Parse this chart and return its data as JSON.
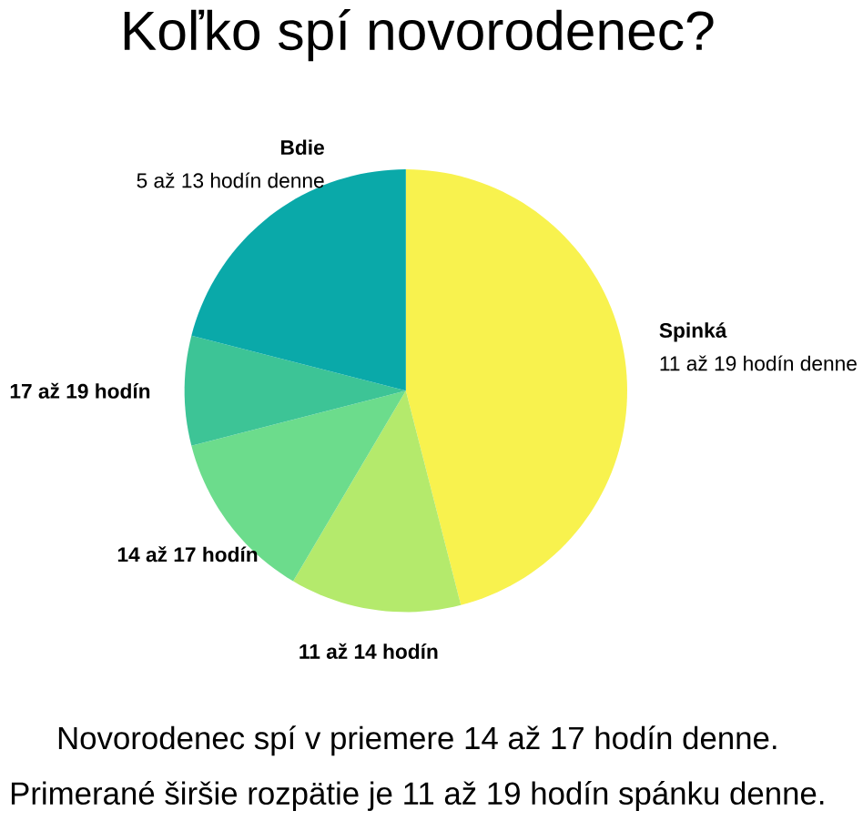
{
  "chart_data": {
    "type": "pie",
    "title": "Koľko spí novorodenec?",
    "categories": [
      "Spinká",
      "11 až 14 hodín",
      "14 až 17 hodín",
      "17 až 19 hodín",
      "Bdie"
    ],
    "values": [
      46,
      12.5,
      12.5,
      8,
      21
    ],
    "colors": [
      "#f8f24e",
      "#b4ea6c",
      "#6cdc8c",
      "#3dc496",
      "#0aa9a9"
    ],
    "annotations": [
      "11 až 19 hodín denne",
      "5 až 13 hodín denne",
      "Novorodenec spí v priemere 14 až 17 hodín denne.",
      "Primerané širšie rozpätie je 11 až 19 hodín spánku denne."
    ]
  }
}
